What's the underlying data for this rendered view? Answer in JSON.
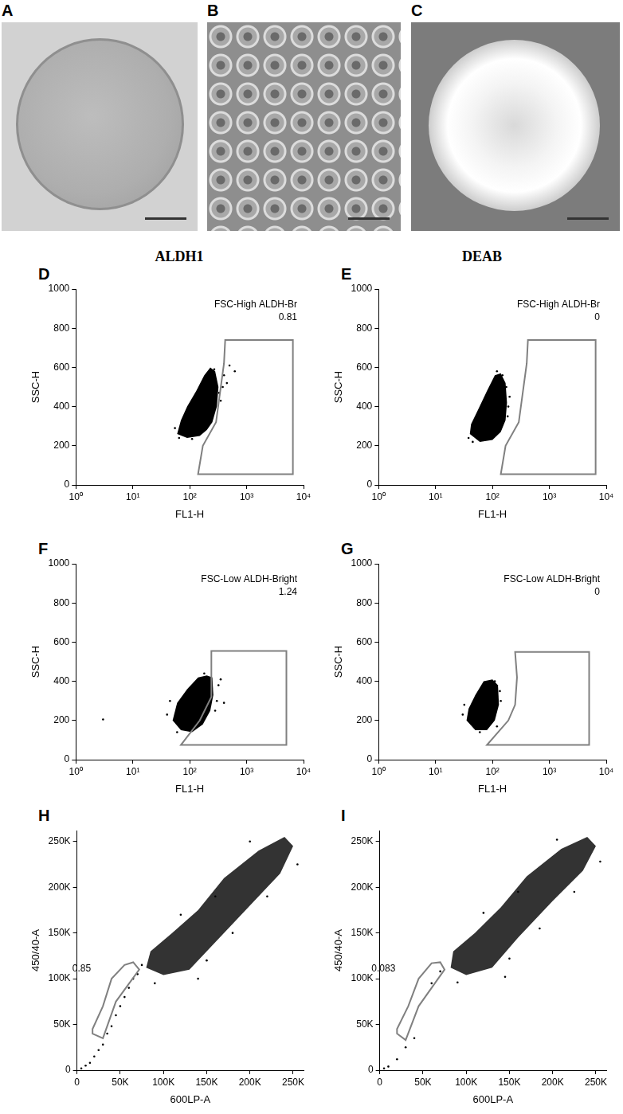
{
  "image_panels": [
    {
      "label": "A"
    },
    {
      "label": "B"
    },
    {
      "label": "C"
    }
  ],
  "column_titles": [
    "ALDH1",
    "DEAB"
  ],
  "chart_data": [
    {
      "panel": "D",
      "type": "scatter",
      "x_label": "FL1-H",
      "y_label": "SSC-H",
      "log": "x",
      "grid": false,
      "color": "#000000",
      "tick_labels": true,
      "xlim": [
        1,
        10000
      ],
      "xticks": [
        {
          "value": 1,
          "label": "10⁰"
        },
        {
          "value": 10,
          "label": "10¹"
        },
        {
          "value": 100,
          "label": "10²"
        },
        {
          "value": 1000,
          "label": "10³"
        },
        {
          "value": 10000,
          "label": "10⁴"
        }
      ],
      "ylim": [
        0,
        1000
      ],
      "yticks": [
        0,
        200,
        400,
        600,
        800,
        1000
      ],
      "cloud": [
        [
          60,
          260
        ],
        [
          90,
          240
        ],
        [
          150,
          250
        ],
        [
          200,
          280
        ],
        [
          250,
          320
        ],
        [
          300,
          400
        ],
        [
          320,
          500
        ],
        [
          280,
          580
        ],
        [
          230,
          600
        ],
        [
          180,
          560
        ],
        [
          130,
          480
        ],
        [
          90,
          400
        ],
        [
          70,
          330
        ]
      ],
      "points": [
        [
          400,
          560
        ],
        [
          450,
          520
        ],
        [
          350,
          430
        ],
        [
          500,
          610
        ],
        [
          55,
          290
        ],
        [
          160,
          300
        ],
        [
          330,
          470
        ],
        [
          270,
          590
        ],
        [
          380,
          500
        ],
        [
          65,
          240
        ],
        [
          110,
          235
        ],
        [
          620,
          580
        ]
      ],
      "gate": {
        "label": "FSC-High ALDH-Br",
        "value": 0.81,
        "color": "#808080",
        "polygon": [
          [
            420,
            740
          ],
          [
            6500,
            740
          ],
          [
            6500,
            55
          ],
          [
            140,
            55
          ],
          [
            170,
            200
          ],
          [
            290,
            320
          ],
          [
            400,
            620
          ]
        ]
      }
    },
    {
      "panel": "E",
      "type": "scatter",
      "x_label": "FL1-H",
      "y_label": "SSC-H",
      "log": "x",
      "grid": false,
      "color": "#000000",
      "tick_labels": true,
      "xlim": [
        1,
        10000
      ],
      "xticks": [
        {
          "value": 1,
          "label": "10⁰"
        },
        {
          "value": 10,
          "label": "10¹"
        },
        {
          "value": 100,
          "label": "10²"
        },
        {
          "value": 1000,
          "label": "10³"
        },
        {
          "value": 10000,
          "label": "10⁴"
        }
      ],
      "ylim": [
        0,
        1000
      ],
      "yticks": [
        0,
        200,
        400,
        600,
        800,
        1000
      ],
      "cloud": [
        [
          40,
          260
        ],
        [
          60,
          220
        ],
        [
          100,
          230
        ],
        [
          140,
          270
        ],
        [
          170,
          330
        ],
        [
          180,
          420
        ],
        [
          170,
          520
        ],
        [
          140,
          570
        ],
        [
          110,
          560
        ],
        [
          80,
          480
        ],
        [
          55,
          380
        ],
        [
          42,
          310
        ]
      ],
      "points": [
        [
          190,
          400
        ],
        [
          200,
          450
        ],
        [
          38,
          240
        ],
        [
          150,
          560
        ],
        [
          120,
          580
        ],
        [
          185,
          350
        ],
        [
          45,
          220
        ],
        [
          175,
          500
        ]
      ],
      "gate": {
        "label": "FSC-High ALDH-Br",
        "value": 0,
        "color": "#808080",
        "polygon": [
          [
            420,
            740
          ],
          [
            6500,
            740
          ],
          [
            6500,
            55
          ],
          [
            140,
            55
          ],
          [
            170,
            200
          ],
          [
            290,
            320
          ],
          [
            400,
            620
          ]
        ]
      }
    },
    {
      "panel": "F",
      "type": "scatter",
      "x_label": "FL1-H",
      "y_label": "SSC-H",
      "log": "x",
      "grid": false,
      "color": "#000000",
      "tick_labels": true,
      "xlim": [
        1,
        10000
      ],
      "xticks": [
        {
          "value": 1,
          "label": "10⁰"
        },
        {
          "value": 10,
          "label": "10¹"
        },
        {
          "value": 100,
          "label": "10²"
        },
        {
          "value": 1000,
          "label": "10³"
        },
        {
          "value": 10000,
          "label": "10⁴"
        }
      ],
      "ylim": [
        0,
        1000
      ],
      "yticks": [
        0,
        200,
        400,
        600,
        800,
        1000
      ],
      "cloud": [
        [
          50,
          200
        ],
        [
          70,
          150
        ],
        [
          110,
          140
        ],
        [
          170,
          180
        ],
        [
          230,
          250
        ],
        [
          260,
          330
        ],
        [
          250,
          420
        ],
        [
          200,
          430
        ],
        [
          140,
          420
        ],
        [
          90,
          360
        ],
        [
          60,
          290
        ]
      ],
      "points": [
        [
          3,
          205
        ],
        [
          300,
          300
        ],
        [
          320,
          380
        ],
        [
          280,
          250
        ],
        [
          40,
          230
        ],
        [
          45,
          300
        ],
        [
          350,
          410
        ],
        [
          400,
          290
        ],
        [
          180,
          440
        ],
        [
          60,
          140
        ]
      ],
      "gate": {
        "label": "FSC-Low ALDH-Bright",
        "value": 1.24,
        "color": "#808080",
        "polygon": [
          [
            250,
            555
          ],
          [
            5000,
            555
          ],
          [
            5000,
            75
          ],
          [
            70,
            75
          ],
          [
            150,
            200
          ],
          [
            240,
            320
          ],
          [
            240,
            555
          ]
        ]
      }
    },
    {
      "panel": "G",
      "type": "scatter",
      "x_label": "FL1-H",
      "y_label": "SSC-H",
      "log": "x",
      "grid": false,
      "color": "#000000",
      "tick_labels": true,
      "xlim": [
        1,
        10000
      ],
      "xticks": [
        {
          "value": 1,
          "label": "10⁰"
        },
        {
          "value": 10,
          "label": "10¹"
        },
        {
          "value": 100,
          "label": "10²"
        },
        {
          "value": 1000,
          "label": "10³"
        },
        {
          "value": 10000,
          "label": "10⁴"
        }
      ],
      "ylim": [
        0,
        1000
      ],
      "yticks": [
        0,
        200,
        400,
        600,
        800,
        1000
      ],
      "cloud": [
        [
          35,
          200
        ],
        [
          50,
          150
        ],
        [
          80,
          150
        ],
        [
          110,
          200
        ],
        [
          130,
          280
        ],
        [
          125,
          380
        ],
        [
          100,
          410
        ],
        [
          70,
          400
        ],
        [
          50,
          330
        ],
        [
          38,
          260
        ]
      ],
      "points": [
        [
          140,
          300
        ],
        [
          135,
          350
        ],
        [
          30,
          230
        ],
        [
          120,
          170
        ],
        [
          32,
          280
        ],
        [
          110,
          400
        ],
        [
          60,
          140
        ]
      ],
      "gate": {
        "label": "FSC-Low ALDH-Bright",
        "value": 0,
        "color": "#808080",
        "polygon": [
          [
            250,
            550
          ],
          [
            5000,
            550
          ],
          [
            5000,
            75
          ],
          [
            80,
            75
          ],
          [
            190,
            200
          ],
          [
            250,
            280
          ],
          [
            270,
            420
          ]
        ]
      }
    },
    {
      "panel": "H",
      "type": "scatter",
      "x_label": "600LP-A",
      "y_label": "450/40-A",
      "grid": false,
      "color": "#000000",
      "tick_labels": true,
      "xlim": [
        0,
        262000
      ],
      "xticks": [
        0,
        {
          "value": 50000,
          "label": "50K"
        },
        {
          "value": 100000,
          "label": "100K"
        },
        {
          "value": 150000,
          "label": "150K"
        },
        {
          "value": 200000,
          "label": "200K"
        },
        {
          "value": 250000,
          "label": "250K"
        }
      ],
      "ylim": [
        0,
        262000
      ],
      "yticks": [
        0,
        {
          "value": 50000,
          "label": "50K"
        },
        {
          "value": 100000,
          "label": "100K"
        },
        {
          "value": 150000,
          "label": "150K"
        },
        {
          "value": 200000,
          "label": "200K"
        },
        {
          "value": 250000,
          "label": "250K"
        }
      ],
      "cloud": [
        [
          80000,
          112000
        ],
        [
          100000,
          104000
        ],
        [
          130000,
          110000
        ],
        [
          160000,
          140000
        ],
        [
          200000,
          180000
        ],
        [
          235000,
          215000
        ],
        [
          250000,
          245000
        ],
        [
          240000,
          255000
        ],
        [
          210000,
          240000
        ],
        [
          170000,
          210000
        ],
        [
          140000,
          175000
        ],
        [
          110000,
          150000
        ],
        [
          85000,
          130000
        ]
      ],
      "points": [
        [
          10000,
          5000
        ],
        [
          20000,
          15000
        ],
        [
          25000,
          22000
        ],
        [
          30000,
          28000
        ],
        [
          35000,
          40000
        ],
        [
          40000,
          48000
        ],
        [
          45000,
          60000
        ],
        [
          50000,
          70000
        ],
        [
          55000,
          80000
        ],
        [
          60000,
          90000
        ],
        [
          65000,
          100000
        ],
        [
          70000,
          105000
        ],
        [
          75000,
          115000
        ],
        [
          150000,
          120000
        ],
        [
          180000,
          150000
        ],
        [
          220000,
          190000
        ],
        [
          255000,
          225000
        ],
        [
          120000,
          170000
        ],
        [
          160000,
          190000
        ],
        [
          200000,
          250000
        ],
        [
          90000,
          95000
        ],
        [
          140000,
          100000
        ],
        [
          5000,
          2000
        ],
        [
          15000,
          8000
        ]
      ],
      "gate": {
        "value": 0.85,
        "color": "#808080",
        "polygon": [
          [
            18000,
            40000
          ],
          [
            30000,
            35000
          ],
          [
            45000,
            75000
          ],
          [
            72000,
            110000
          ],
          [
            65000,
            118000
          ],
          [
            55000,
            115000
          ],
          [
            40000,
            100000
          ],
          [
            30000,
            70000
          ],
          [
            18000,
            45000
          ]
        ]
      }
    },
    {
      "panel": "I",
      "type": "scatter",
      "x_label": "600LP-A",
      "y_label": "450/40-A",
      "grid": false,
      "color": "#000000",
      "tick_labels": true,
      "xlim": [
        0,
        262000
      ],
      "xticks": [
        0,
        {
          "value": 50000,
          "label": "50K"
        },
        {
          "value": 100000,
          "label": "100K"
        },
        {
          "value": 150000,
          "label": "150K"
        },
        {
          "value": 200000,
          "label": "200K"
        },
        {
          "value": 250000,
          "label": "250K"
        }
      ],
      "ylim": [
        0,
        262000
      ],
      "yticks": [
        0,
        {
          "value": 50000,
          "label": "50K"
        },
        {
          "value": 100000,
          "label": "100K"
        },
        {
          "value": 150000,
          "label": "150K"
        },
        {
          "value": 200000,
          "label": "200K"
        },
        {
          "value": 250000,
          "label": "250K"
        }
      ],
      "cloud": [
        [
          82000,
          112000
        ],
        [
          100000,
          104000
        ],
        [
          130000,
          112000
        ],
        [
          160000,
          145000
        ],
        [
          200000,
          185000
        ],
        [
          235000,
          218000
        ],
        [
          250000,
          245000
        ],
        [
          240000,
          255000
        ],
        [
          210000,
          242000
        ],
        [
          170000,
          212000
        ],
        [
          140000,
          178000
        ],
        [
          110000,
          150000
        ],
        [
          85000,
          130000
        ]
      ],
      "points": [
        [
          10000,
          4000
        ],
        [
          20000,
          12000
        ],
        [
          30000,
          25000
        ],
        [
          40000,
          35000
        ],
        [
          60000,
          95000
        ],
        [
          70000,
          108000
        ],
        [
          150000,
          122000
        ],
        [
          185000,
          155000
        ],
        [
          225000,
          195000
        ],
        [
          255000,
          228000
        ],
        [
          120000,
          172000
        ],
        [
          160000,
          195000
        ],
        [
          205000,
          252000
        ],
        [
          90000,
          96000
        ],
        [
          145000,
          102000
        ],
        [
          5000,
          2000
        ]
      ],
      "gate": {
        "value": 0.083,
        "color": "#808080",
        "polygon": [
          [
            20000,
            40000
          ],
          [
            30000,
            33000
          ],
          [
            45000,
            70000
          ],
          [
            75000,
            110000
          ],
          [
            70000,
            118000
          ],
          [
            60000,
            117000
          ],
          [
            45000,
            100000
          ],
          [
            33000,
            70000
          ],
          [
            20000,
            45000
          ]
        ]
      }
    }
  ]
}
